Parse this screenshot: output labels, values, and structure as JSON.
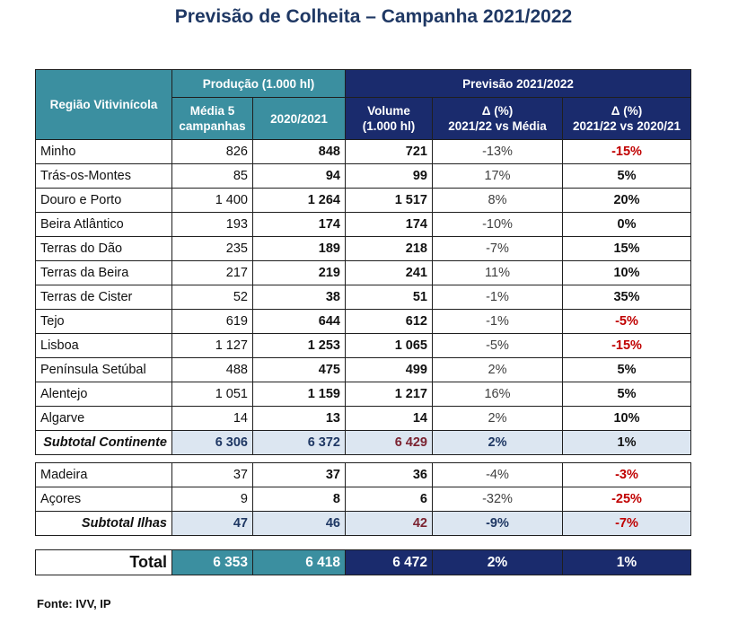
{
  "title": "Previsão de Colheita – Campanha 2021/2022",
  "source": "Fonte: IVV, IP",
  "header": {
    "region": "Região Vitivinícola",
    "producao": "Produção (1.000 hl)",
    "previsao": "Previsão 2021/2022",
    "media5_line1": "Média 5",
    "media5_line2": "campanhas",
    "y2020": "2020/2021",
    "volume_line1": "Volume",
    "volume_line2": "(1.000 hl)",
    "delta1_line1": "Δ (%)",
    "delta1_line2": "2021/22 vs Média",
    "delta2_line1": "Δ (%)",
    "delta2_line2": "2021/22 vs 2020/21"
  },
  "continente": [
    {
      "region": "Minho",
      "media": "826",
      "prev_year": "848",
      "volume": "721",
      "d_media": "-13%",
      "d_year": "-15%",
      "neg": true
    },
    {
      "region": "Trás-os-Montes",
      "media": "85",
      "prev_year": "94",
      "volume": "99",
      "d_media": "17%",
      "d_year": "5%",
      "neg": false
    },
    {
      "region": "Douro e Porto",
      "media": "1 400",
      "prev_year": "1 264",
      "volume": "1 517",
      "d_media": "8%",
      "d_year": "20%",
      "neg": false
    },
    {
      "region": "Beira Atlântico",
      "media": "193",
      "prev_year": "174",
      "volume": "174",
      "d_media": "-10%",
      "d_year": "0%",
      "neg": false
    },
    {
      "region": "Terras do Dão",
      "media": "235",
      "prev_year": "189",
      "volume": "218",
      "d_media": "-7%",
      "d_year": "15%",
      "neg": false
    },
    {
      "region": "Terras da Beira",
      "media": "217",
      "prev_year": "219",
      "volume": "241",
      "d_media": "11%",
      "d_year": "10%",
      "neg": false
    },
    {
      "region": "Terras de Cister",
      "media": "52",
      "prev_year": "38",
      "volume": "51",
      "d_media": "-1%",
      "d_year": "35%",
      "neg": false
    },
    {
      "region": "Tejo",
      "media": "619",
      "prev_year": "644",
      "volume": "612",
      "d_media": "-1%",
      "d_year": "-5%",
      "neg": true
    },
    {
      "region": "Lisboa",
      "media": "1 127",
      "prev_year": "1 253",
      "volume": "1 065",
      "d_media": "-5%",
      "d_year": "-15%",
      "neg": true
    },
    {
      "region": "Península Setúbal",
      "media": "488",
      "prev_year": "475",
      "volume": "499",
      "d_media": "2%",
      "d_year": "5%",
      "neg": false
    },
    {
      "region": "Alentejo",
      "media": "1 051",
      "prev_year": "1 159",
      "volume": "1 217",
      "d_media": "16%",
      "d_year": "5%",
      "neg": false
    },
    {
      "region": "Algarve",
      "media": "14",
      "prev_year": "13",
      "volume": "14",
      "d_media": "2%",
      "d_year": "10%",
      "neg": false
    }
  ],
  "subtotal_continente": {
    "label": "Subtotal Continente",
    "media": "6 306",
    "prev_year": "6 372",
    "volume": "6 429",
    "d_media": "2%",
    "d_year": "1%"
  },
  "ilhas": [
    {
      "region": "Madeira",
      "media": "37",
      "prev_year": "37",
      "volume": "36",
      "d_media": "-4%",
      "d_year": "-3%",
      "neg": true
    },
    {
      "region": "Açores",
      "media": "9",
      "prev_year": "8",
      "volume": "6",
      "d_media": "-32%",
      "d_year": "-25%",
      "neg": true
    }
  ],
  "subtotal_ilhas": {
    "label": "Subtotal Ilhas",
    "media": "47",
    "prev_year": "46",
    "volume": "42",
    "d_media": "-9%",
    "d_year": "-7%"
  },
  "total": {
    "label": "Total",
    "media": "6 353",
    "prev_year": "6 418",
    "volume": "6 472",
    "d_media": "2%",
    "d_year": "1%"
  },
  "colors": {
    "teal": "#3b8fa0",
    "navy": "#1a2b6d",
    "negative": "#c00000",
    "subtotal_bg": "#dce6f1",
    "title": "#1f3864"
  }
}
